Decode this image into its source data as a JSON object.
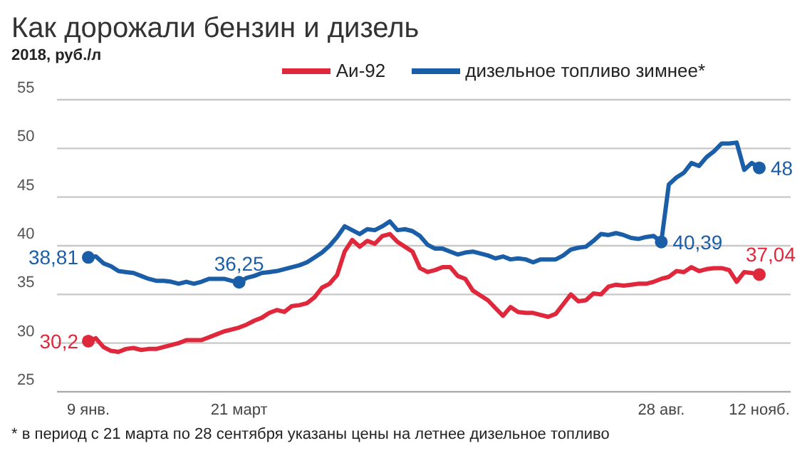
{
  "chart_data": {
    "type": "line",
    "title": "Как дорожали бензин и дизель",
    "subtitle": "2018, руб./л",
    "categories": [
      "9 янв.",
      null,
      null,
      null,
      null,
      null,
      null,
      null,
      null,
      null,
      null,
      null,
      null,
      null,
      null,
      null,
      null,
      null,
      null,
      null,
      "21 март",
      null,
      null,
      null,
      null,
      null,
      null,
      null,
      null,
      null,
      null,
      null,
      null,
      null,
      null,
      null,
      null,
      null,
      null,
      null,
      null,
      null,
      null,
      null,
      null,
      null,
      null,
      null,
      null,
      null,
      null,
      null,
      null,
      null,
      null,
      null,
      null,
      null,
      null,
      null,
      null,
      null,
      null,
      null,
      null,
      null,
      null,
      null,
      null,
      null,
      null,
      null,
      null,
      null,
      null,
      null,
      "28 авг.",
      null,
      null,
      null,
      null,
      null,
      null,
      null,
      null,
      null,
      null,
      null,
      null,
      "12 нояб."
    ],
    "series": [
      {
        "name": "Аи-92",
        "color": "#e0283c",
        "values": [
          30.2,
          30.5,
          29.6,
          29.2,
          29.1,
          29.4,
          29.5,
          29.3,
          29.4,
          29.4,
          29.6,
          29.8,
          30.0,
          30.3,
          30.3,
          30.3,
          30.6,
          30.9,
          31.2,
          31.4,
          31.6,
          31.9,
          32.3,
          32.6,
          33.1,
          33.4,
          33.2,
          33.8,
          33.9,
          34.1,
          34.7,
          35.7,
          36.1,
          37.0,
          39.4,
          40.6,
          39.9,
          40.5,
          40.2,
          41.0,
          41.2,
          40.4,
          39.9,
          39.4,
          37.7,
          37.3,
          37.5,
          37.8,
          37.8,
          36.9,
          36.6,
          35.4,
          34.9,
          34.4,
          33.6,
          32.8,
          33.7,
          33.2,
          33.1,
          33.1,
          32.9,
          32.7,
          33.0,
          34.0,
          35.0,
          34.3,
          34.4,
          35.1,
          35.0,
          35.8,
          36.0,
          35.9,
          36.0,
          36.1,
          36.1,
          36.3,
          36.6,
          36.8,
          37.4,
          37.3,
          37.8,
          37.4,
          37.6,
          37.7,
          37.7,
          37.5,
          36.3,
          37.3,
          37.2,
          37.04
        ],
        "value_labels": [
          "30,2",
          null,
          null,
          null,
          null,
          null,
          null,
          null,
          null,
          null,
          null,
          null,
          null,
          null,
          null,
          null,
          null,
          null,
          null,
          null,
          null,
          null,
          null,
          null,
          null,
          null,
          null,
          null,
          null,
          null,
          null,
          null,
          null,
          null,
          null,
          null,
          null,
          null,
          null,
          null,
          null,
          null,
          null,
          null,
          null,
          null,
          null,
          null,
          null,
          null,
          null,
          null,
          null,
          null,
          null,
          null,
          null,
          null,
          null,
          null,
          null,
          null,
          null,
          null,
          null,
          null,
          null,
          null,
          null,
          null,
          null,
          null,
          null,
          null,
          null,
          null,
          null,
          null,
          null,
          null,
          null,
          null,
          null,
          null,
          null,
          null,
          null,
          null,
          null,
          "37,04"
        ]
      },
      {
        "name": "дизельное топливо зимнее*",
        "color": "#1a5ea8",
        "values": [
          38.81,
          38.9,
          38.2,
          37.9,
          37.4,
          37.3,
          37.2,
          36.9,
          36.6,
          36.4,
          36.4,
          36.3,
          36.1,
          36.3,
          36.1,
          36.3,
          36.6,
          36.6,
          36.6,
          36.4,
          36.25,
          36.7,
          36.9,
          37.2,
          37.3,
          37.4,
          37.6,
          37.8,
          38.0,
          38.3,
          38.8,
          39.3,
          40.0,
          40.9,
          42.0,
          41.6,
          41.2,
          41.7,
          41.6,
          42.0,
          42.5,
          41.6,
          41.7,
          41.5,
          41.0,
          40.1,
          39.7,
          39.7,
          39.4,
          39.1,
          39.3,
          39.4,
          39.2,
          39.0,
          38.7,
          38.9,
          38.6,
          38.7,
          38.6,
          38.3,
          38.6,
          38.6,
          38.6,
          39.0,
          39.6,
          39.8,
          39.9,
          40.5,
          41.2,
          41.1,
          41.3,
          41.1,
          40.8,
          40.7,
          40.9,
          41.0,
          40.39,
          46.3,
          47.0,
          47.5,
          48.5,
          48.2,
          49.1,
          49.7,
          50.5,
          50.5,
          50.6,
          47.8,
          48.5,
          48
        ],
        "value_labels": [
          "38,81",
          null,
          null,
          null,
          null,
          null,
          null,
          null,
          null,
          null,
          null,
          null,
          null,
          null,
          null,
          null,
          null,
          null,
          null,
          null,
          "36,25",
          null,
          null,
          null,
          null,
          null,
          null,
          null,
          null,
          null,
          null,
          null,
          null,
          null,
          null,
          null,
          null,
          null,
          null,
          null,
          null,
          null,
          null,
          null,
          null,
          null,
          null,
          null,
          null,
          null,
          null,
          null,
          null,
          null,
          null,
          null,
          null,
          null,
          null,
          null,
          null,
          null,
          null,
          null,
          null,
          null,
          null,
          null,
          null,
          null,
          null,
          null,
          null,
          null,
          null,
          null,
          "40,39",
          null,
          null,
          null,
          null,
          null,
          null,
          null,
          null,
          null,
          null,
          null,
          null,
          "48"
        ]
      }
    ],
    "ylim": [
      25,
      55
    ],
    "yticks": [
      25,
      30,
      35,
      40,
      45,
      50,
      55
    ],
    "grid": "y",
    "legend": "top",
    "annotations": [
      "* в период с 21 марта по 28 сентября указаны цены на летнее дизельное топливо"
    ]
  }
}
